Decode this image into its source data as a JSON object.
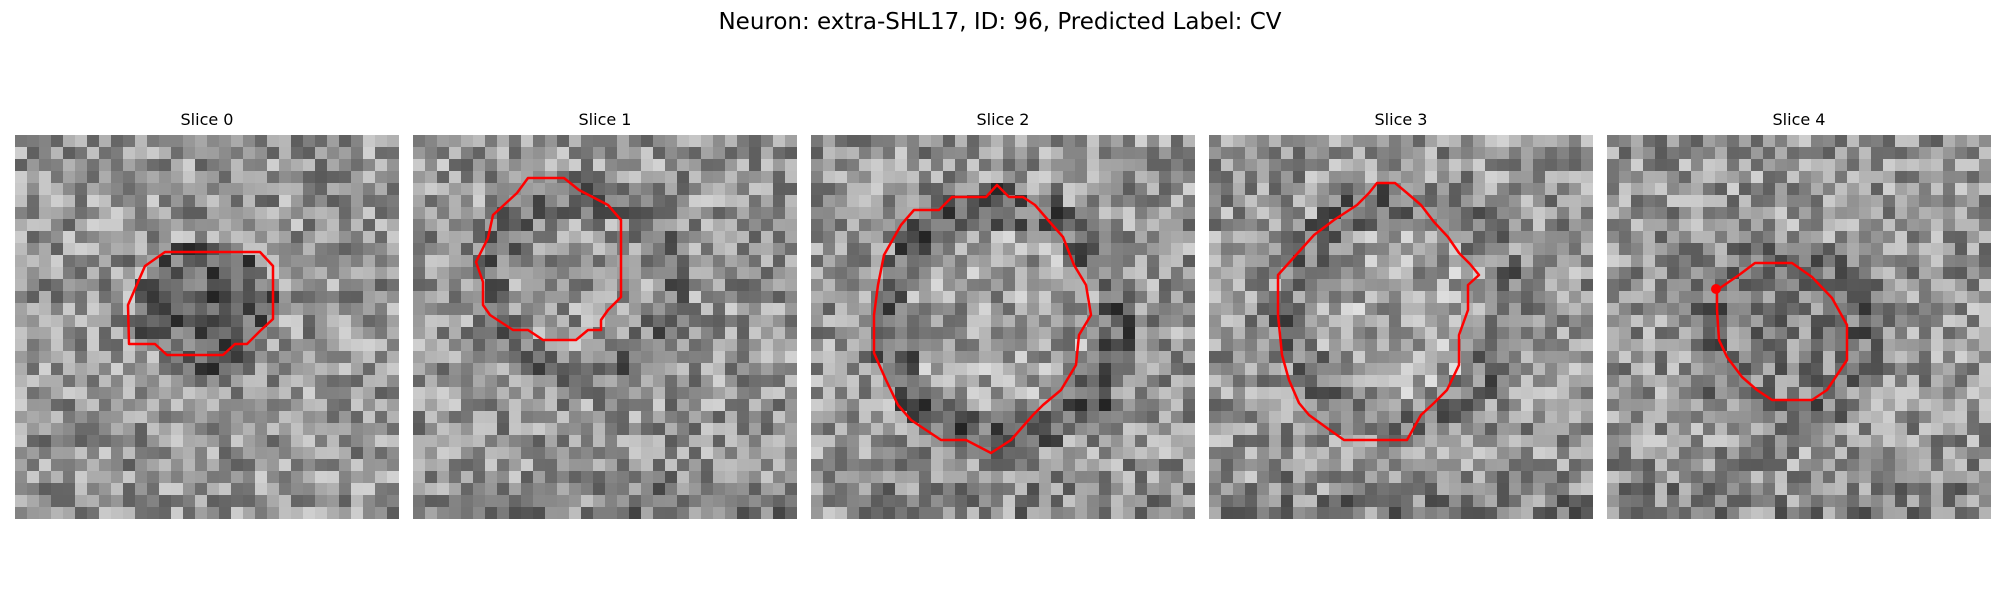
{
  "figure": {
    "title": "Neuron: extra-SHL17, ID: 96, Predicted Label: CV"
  },
  "panels": [
    {
      "title": "Slice 0"
    },
    {
      "title": "Slice 1"
    },
    {
      "title": "Slice 2"
    },
    {
      "title": "Slice 3"
    },
    {
      "title": "Slice 4"
    }
  ],
  "colors": {
    "contour": "#ff0000",
    "colormap": "gray"
  }
}
